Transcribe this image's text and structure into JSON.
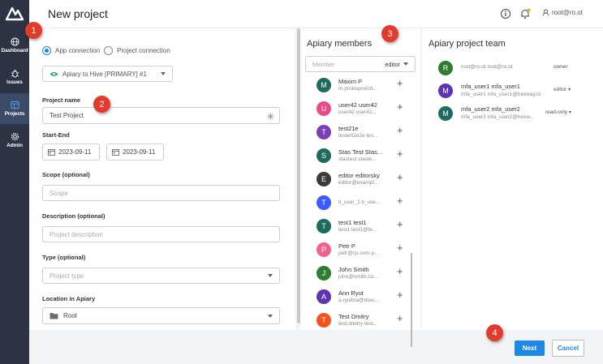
{
  "header": {
    "title": "New project",
    "user": "root@ro.ot"
  },
  "sidebar": {
    "items": [
      {
        "label": "Dashboard",
        "icon": "globe-icon"
      },
      {
        "label": "Issues",
        "icon": "bug-icon"
      },
      {
        "label": "Projects",
        "icon": "projects-icon",
        "active": true
      },
      {
        "label": "Admin",
        "icon": "gear-icon"
      }
    ]
  },
  "form": {
    "radio_app": "App connection",
    "radio_project": "Project connection",
    "connection_value": "Apiary to Hive [PRIMARY] #1",
    "project_name_label": "Project name",
    "project_name_value": "Test Project",
    "start_end_label": "Start-End",
    "start_date": "2023-09-11",
    "end_date": "2023-09-11",
    "scope_label": "Scope (optional)",
    "scope_placeholder": "Scope",
    "desc_label": "Description (optional)",
    "desc_placeholder": "Project description",
    "type_label": "Type (optional)",
    "type_placeholder": "Project type",
    "location_label": "Location in Apiary",
    "location_value": "Root"
  },
  "members": {
    "title": "Apiary members",
    "filter_placeholder": "Member",
    "filter_role": "editor",
    "list": [
      {
        "initial": "M",
        "color": "#1e6b5e",
        "name": "Maxim P",
        "email": "m.prokopovich..."
      },
      {
        "initial": "U",
        "color": "#e84d8a",
        "name": "user42 user42",
        "email": "user42 user42..."
      },
      {
        "initial": "T",
        "color": "#7b3fb5",
        "name": "test21e",
        "email": "testert2e2e tes..."
      },
      {
        "initial": "S",
        "color": "#1e6b5e",
        "name": "Stas Test Stas...",
        "email": "stastest staste..."
      },
      {
        "initial": "E",
        "color": "#3a3a3a",
        "name": "editor editorsky",
        "email": "editor@exampl..."
      },
      {
        "initial": "T",
        "color": "#3d5afe",
        "name": "",
        "email": "ti_user_1 ti_use..."
      },
      {
        "initial": "T",
        "color": "#1e6b5e",
        "name": "test1 test1",
        "email": "test1 test1@te..."
      },
      {
        "initial": "P",
        "color": "#f06292",
        "name": "Petr P",
        "email": "petr@cp.com p..."
      },
      {
        "initial": "J",
        "color": "#2e7d32",
        "name": "John Smith",
        "email": "john@smith.co..."
      },
      {
        "initial": "A",
        "color": "#5e35b1",
        "name": "Ann Ryut",
        "email": "a.ryutina@dsec..."
      },
      {
        "initial": "T",
        "color": "#f4511e",
        "name": "Test Dmitry",
        "email": "test.dmitry test..."
      }
    ]
  },
  "team": {
    "title": "Apiary project team",
    "list": [
      {
        "initial": "R",
        "color": "#2e7d32",
        "name": "",
        "email": "root@ro.ot root@ro.ot",
        "role": "owner",
        "dropdown": false
      },
      {
        "initial": "M",
        "color": "#5e35b1",
        "name": "mfa_user1 mfa_user1",
        "email": "mfa_user1 mfa_user1@hexway.io",
        "role": "editor",
        "dropdown": true
      },
      {
        "initial": "M",
        "color": "#1e6b5e",
        "name": "mfa_user2 mfa_user2",
        "email": "mfa_user2 mfa_user2@hexw...",
        "role": "read-only",
        "dropdown": true
      }
    ]
  },
  "footer": {
    "next": "Next",
    "cancel": "Cancel"
  },
  "callouts": [
    "1",
    "2",
    "3",
    "4"
  ]
}
